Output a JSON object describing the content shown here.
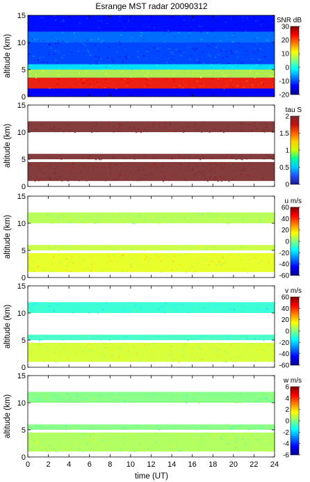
{
  "chart_data": {
    "type": "heatmap",
    "title": "Esrange MST radar 20090312",
    "xlabel": "time (UT)",
    "xlim": [
      0,
      24
    ],
    "x_ticks": [
      0,
      2,
      4,
      6,
      8,
      10,
      12,
      14,
      16,
      18,
      20,
      22,
      24
    ],
    "shared_x_axis": true,
    "panels": [
      {
        "id": "snr",
        "ylabel": "altitude (km)",
        "ylim": [
          0,
          15
        ],
        "y_ticks": [
          0,
          5,
          10,
          15
        ],
        "colorbar": {
          "label": "SNR dB",
          "range": [
            -20,
            30
          ],
          "ticks": [
            -20,
            -10,
            0,
            10,
            20,
            30
          ]
        },
        "layers": [
          {
            "alt_km": [
              1.5,
              3.5
            ],
            "value": 22
          },
          {
            "alt_km": [
              3.5,
              5.0
            ],
            "value": 8
          },
          {
            "alt_km": [
              5.0,
              6.0
            ],
            "value": -2
          },
          {
            "alt_km": [
              6.0,
              10.0
            ],
            "value": -10
          },
          {
            "alt_km": [
              10.0,
              12.0
            ],
            "value": -8
          },
          {
            "alt_km": [
              12.0,
              15.0
            ],
            "value": -13
          }
        ]
      },
      {
        "id": "tau",
        "ylabel": "altitude (km)",
        "ylim": [
          0,
          15
        ],
        "y_ticks": [
          0,
          5,
          10,
          15
        ],
        "colorbar": {
          "label": "tau S",
          "range": [
            0,
            2
          ],
          "ticks": [
            0,
            0.5,
            1,
            1.5,
            2
          ]
        },
        "layers": [
          {
            "alt_km": [
              1.0,
              4.5
            ],
            "value": 2
          },
          {
            "alt_km": [
              5.0,
              6.0
            ],
            "value": 2
          },
          {
            "alt_km": [
              10.0,
              12.0
            ],
            "value": 2
          }
        ]
      },
      {
        "id": "u",
        "ylabel": "altitude (km)",
        "ylim": [
          0,
          15
        ],
        "y_ticks": [
          0,
          5,
          10,
          15
        ],
        "colorbar": {
          "label": "u m/s",
          "range": [
            -60,
            60
          ],
          "ticks": [
            -60,
            -40,
            -20,
            0,
            20,
            40,
            60
          ]
        },
        "layers": [
          {
            "alt_km": [
              1.0,
              4.5
            ],
            "value": 12
          },
          {
            "alt_km": [
              5.0,
              6.0
            ],
            "value": 8
          },
          {
            "alt_km": [
              10.0,
              12.0
            ],
            "value": 6
          }
        ]
      },
      {
        "id": "v",
        "ylabel": "altitude (km)",
        "ylim": [
          0,
          15
        ],
        "y_ticks": [
          0,
          5,
          10,
          15
        ],
        "colorbar": {
          "label": "v m/s",
          "range": [
            -60,
            60
          ],
          "ticks": [
            -60,
            -40,
            -20,
            0,
            20,
            40,
            60
          ]
        },
        "layers": [
          {
            "alt_km": [
              1.0,
              4.5
            ],
            "value": 10
          },
          {
            "alt_km": [
              5.0,
              6.0
            ],
            "value": -8
          },
          {
            "alt_km": [
              10.0,
              12.0
            ],
            "value": -10
          }
        ]
      },
      {
        "id": "w",
        "ylabel": "altitude (km)",
        "ylim": [
          0,
          15
        ],
        "y_ticks": [
          0,
          5,
          10,
          15
        ],
        "colorbar": {
          "label": "w m/s",
          "range": [
            -6,
            6
          ],
          "ticks": [
            -6,
            -4,
            -2,
            0,
            2,
            4,
            6
          ]
        },
        "layers": [
          {
            "alt_km": [
              1.0,
              4.5
            ],
            "value": 0.5
          },
          {
            "alt_km": [
              5.0,
              6.0
            ],
            "value": 0
          },
          {
            "alt_km": [
              10.0,
              12.0
            ],
            "value": 0
          }
        ]
      }
    ]
  }
}
